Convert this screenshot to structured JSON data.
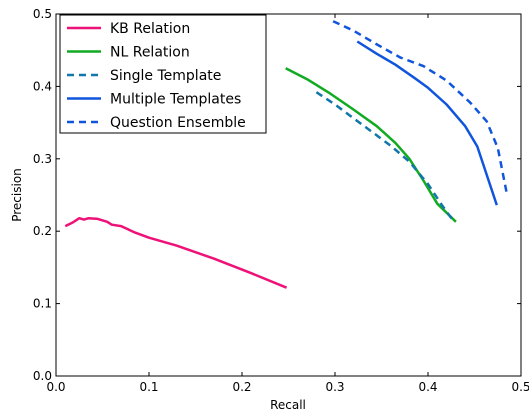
{
  "chart_data": {
    "type": "line",
    "xlabel": "Recall",
    "ylabel": "Precision",
    "xlim": [
      0.0,
      0.5
    ],
    "ylim": [
      0.0,
      0.5
    ],
    "xticks": [
      "0.0",
      "0.1",
      "0.2",
      "0.3",
      "0.4",
      "0.5"
    ],
    "yticks": [
      "0.0",
      "0.1",
      "0.2",
      "0.3",
      "0.4",
      "0.5"
    ],
    "grid": false,
    "legend_position": "top-left",
    "series": [
      {
        "name": "KB Relation",
        "color": "#ee1177",
        "dash": "solid",
        "x": [
          0.01,
          0.018,
          0.025,
          0.03,
          0.035,
          0.045,
          0.055,
          0.06,
          0.07,
          0.085,
          0.1,
          0.13,
          0.17,
          0.21,
          0.248
        ],
        "y": [
          0.207,
          0.212,
          0.218,
          0.216,
          0.218,
          0.217,
          0.213,
          0.209,
          0.207,
          0.198,
          0.191,
          0.18,
          0.162,
          0.142,
          0.122
        ]
      },
      {
        "name": "NL Relation",
        "color": "#11aa22",
        "dash": "solid",
        "x": [
          0.247,
          0.27,
          0.295,
          0.32,
          0.345,
          0.365,
          0.38,
          0.395,
          0.41,
          0.43
        ],
        "y": [
          0.425,
          0.41,
          0.39,
          0.368,
          0.345,
          0.322,
          0.3,
          0.27,
          0.238,
          0.213
        ]
      },
      {
        "name": "Single Template",
        "color": "#1177aa",
        "dash": "dashed",
        "x": [
          0.28,
          0.3,
          0.32,
          0.34,
          0.36,
          0.38,
          0.4,
          0.415,
          0.428
        ],
        "y": [
          0.392,
          0.375,
          0.356,
          0.337,
          0.318,
          0.296,
          0.265,
          0.236,
          0.213
        ]
      },
      {
        "name": "Multiple Templates",
        "color": "#1155dd",
        "dash": "solid",
        "x": [
          0.324,
          0.345,
          0.365,
          0.385,
          0.4,
          0.42,
          0.44,
          0.453,
          0.474
        ],
        "y": [
          0.462,
          0.445,
          0.43,
          0.412,
          0.398,
          0.375,
          0.345,
          0.317,
          0.236
        ]
      },
      {
        "name": "Question Ensemble",
        "color": "#1155dd",
        "dash": "dashed",
        "x": [
          0.298,
          0.32,
          0.345,
          0.37,
          0.395,
          0.42,
          0.445,
          0.463,
          0.475,
          0.485
        ],
        "y": [
          0.49,
          0.477,
          0.458,
          0.44,
          0.428,
          0.408,
          0.378,
          0.352,
          0.315,
          0.25
        ]
      }
    ]
  }
}
